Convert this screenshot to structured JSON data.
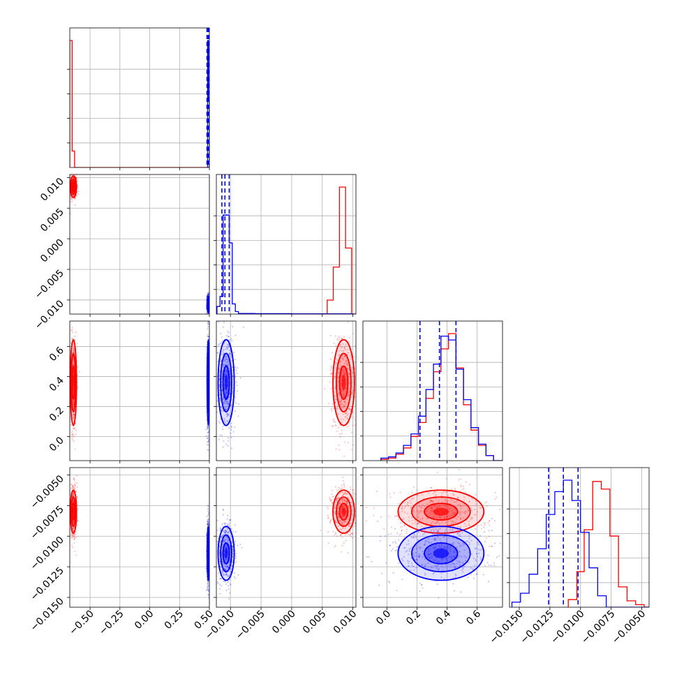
{
  "chart_data": {
    "type": "corner",
    "title": "",
    "series": [
      {
        "name": "",
        "color": "#ff0000"
      },
      {
        "name": "",
        "color": "#0000ff"
      }
    ],
    "params": [
      {
        "ticks": [
          -0.5,
          -0.25,
          0.0,
          0.25,
          0.5
        ],
        "tick_labels": [
          "−0.50",
          "−0.25",
          "0.00",
          "0.25",
          "0.50"
        ],
        "range": [
          -0.67,
          0.5
        ]
      },
      {
        "ticks": [
          -0.01,
          -0.005,
          0.0,
          0.005,
          0.01
        ],
        "tick_labels": [
          "−0.010",
          "−0.005",
          "0.000",
          "0.005",
          "0.010"
        ],
        "range": [
          -0.0123,
          0.0105
        ]
      },
      {
        "ticks": [
          0.0,
          0.2,
          0.4,
          0.6
        ],
        "tick_labels": [
          "0.0",
          "0.2",
          "0.4",
          "0.6"
        ],
        "range": [
          -0.16,
          0.77
        ]
      },
      {
        "ticks": [
          -0.015,
          -0.0125,
          -0.01,
          -0.0075,
          -0.005
        ],
        "tick_labels": [
          "−0.0150",
          "−0.0125",
          "−0.0100",
          "−0.0075",
          "−0.0050"
        ],
        "range": [
          -0.0158,
          -0.0044
        ]
      }
    ],
    "distributions": [
      {
        "name": "",
        "color": "#ff0000",
        "mean": [
          -0.64,
          0.0085,
          0.36,
          -0.008
        ],
        "sd": [
          0.012,
          0.0008,
          0.13,
          0.0008
        ],
        "hist": [
          {
            "edges": [
              -0.67,
              -0.65,
              -0.63,
              -0.61
            ],
            "counts": [
              1.0,
              0.13,
              0.0
            ]
          },
          {
            "edges": [
              0.0058,
              0.0068,
              0.0078,
              0.0088,
              0.0098
            ],
            "counts": [
              0.11,
              0.37,
              1.0,
              0.52
            ]
          },
          {
            "edges": [
              -0.04,
              0.01,
              0.06,
              0.11,
              0.16,
              0.21,
              0.26,
              0.31,
              0.36,
              0.41,
              0.46,
              0.51,
              0.56,
              0.61,
              0.66,
              0.71
            ],
            "counts": [
              0.01,
              0.02,
              0.05,
              0.1,
              0.19,
              0.3,
              0.49,
              0.7,
              0.88,
              1.0,
              0.73,
              0.44,
              0.24,
              0.12,
              0.04
            ]
          },
          {
            "edges": [
              -0.011,
              -0.0103,
              -0.0097,
              -0.009,
              -0.0083,
              -0.0076,
              -0.0069,
              -0.0062,
              -0.0055,
              -0.0048
            ],
            "counts": [
              0.06,
              0.28,
              0.61,
              0.99,
              0.93,
              0.56,
              0.16,
              0.05,
              0.02
            ]
          }
        ]
      },
      {
        "name": "",
        "color": "#0000ff",
        "mean": [
          0.49,
          -0.0107,
          0.36,
          -0.0114
        ],
        "sd": [
          0.004,
          0.0006,
          0.13,
          0.001
        ],
        "hist": [
          {
            "edges": [
              0.485,
              0.492,
              0.499
            ],
            "counts": [
              1.0,
              0.55
            ]
          },
          {
            "edges": [
              -0.0122,
              -0.0117,
              -0.0112,
              -0.0107,
              -0.0102,
              -0.0097,
              -0.0092,
              -0.0087,
              -0.006,
              0.0,
              0.005,
              0.01
            ],
            "counts": [
              0.06,
              0.14,
              0.78,
              0.78,
              0.56,
              0.08,
              0.02,
              0.005,
              0.003,
              0.002,
              0.002
            ]
          },
          {
            "edges": [
              -0.04,
              0.01,
              0.06,
              0.11,
              0.16,
              0.21,
              0.26,
              0.31,
              0.36,
              0.41,
              0.46,
              0.51,
              0.56,
              0.61,
              0.66,
              0.71
            ],
            "counts": [
              0.02,
              0.03,
              0.06,
              0.12,
              0.21,
              0.35,
              0.56,
              0.76,
              0.98,
              0.95,
              0.72,
              0.48,
              0.26,
              0.13,
              0.04
            ]
          },
          {
            "edges": [
              -0.0156,
              -0.0149,
              -0.0142,
              -0.0135,
              -0.0128,
              -0.0121,
              -0.0114,
              -0.0107,
              -0.01,
              -0.0093,
              -0.0086,
              -0.0079
            ],
            "counts": [
              0.04,
              0.11,
              0.26,
              0.46,
              0.73,
              0.91,
              1.0,
              0.84,
              0.59,
              0.31,
              0.09
            ]
          }
        ]
      }
    ],
    "quantile_lines": [
      {
        "param": 0,
        "values": [
          0.48,
          0.49,
          0.497
        ]
      },
      {
        "param": 1,
        "values": [
          -0.0114,
          -0.0109,
          -0.0102
        ]
      },
      {
        "param": 2,
        "values": [
          0.22,
          0.35,
          0.46
        ]
      },
      {
        "param": 3,
        "values": [
          -0.0126,
          -0.0114,
          -0.0102
        ]
      }
    ],
    "grid": true
  }
}
